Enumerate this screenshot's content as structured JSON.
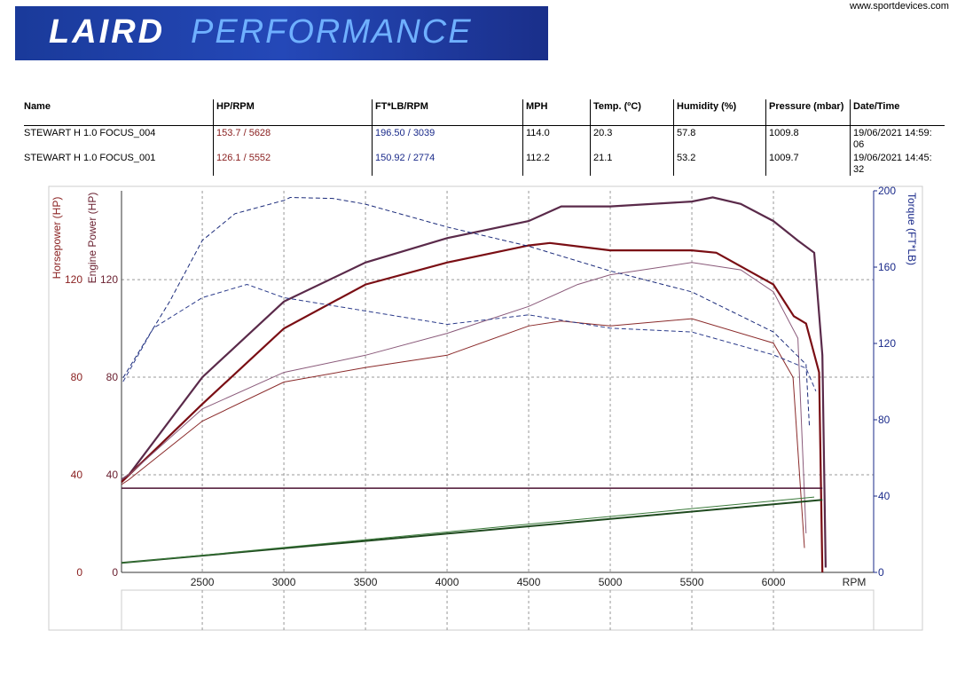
{
  "header": {
    "logo_bold": "LAIRD",
    "logo_light": "PERFORMANCE",
    "url": "www.sportdevices.com"
  },
  "table": {
    "columns": [
      "Name",
      "HP/RPM",
      "FT*LB/RPM",
      "MPH",
      "Temp. (ºC)",
      "Humidity (%)",
      "Pressure (mbar)",
      "Date/Time"
    ],
    "rows": [
      [
        "STEWART H 1.0 FOCUS_004",
        "153.7 / 5628",
        "196.50 / 3039",
        "114.0",
        "20.3",
        "57.8",
        "1009.8",
        "19/06/2021 14:59:06"
      ],
      [
        "STEWART H 1.0 FOCUS_001",
        "126.1 / 5552",
        "150.92 / 2774",
        "112.2",
        "21.1",
        "53.2",
        "1009.7",
        "19/06/2021 14:45:32"
      ]
    ]
  },
  "chart_data": {
    "type": "line",
    "ylabel": "Horsepower (HP)",
    "ylabel_inner": "Engine Power (HP)",
    "y2label": "Torque (FT*LB)",
    "xlabel": "RPM",
    "xlim": [
      2005,
      6614
    ],
    "ylim": [
      0,
      156.4
    ],
    "y2lim": [
      0,
      200
    ],
    "xticks": [
      2500,
      3000,
      3500,
      4000,
      4500,
      5000,
      5500,
      6000
    ],
    "yticks": [
      0,
      40,
      80,
      120
    ],
    "y2ticks": [
      0,
      40,
      80,
      120,
      160,
      200
    ],
    "grid": true,
    "series": [
      {
        "color": "#5a2a4a",
        "width": 2.2,
        "dash": "none",
        "axis": "y",
        "x": [
          2005,
          2050,
          2500,
          3000,
          3500,
          4000,
          4500,
          4700,
          5000,
          5500,
          5628,
          5800,
          6000,
          6150,
          6250,
          6300,
          6320
        ],
        "values": [
          38,
          40,
          80,
          111,
          127,
          137,
          144,
          150,
          150,
          152,
          153.7,
          151,
          144,
          136,
          131,
          89,
          2
        ]
      },
      {
        "color": "#7a0e14",
        "width": 2.2,
        "dash": "none",
        "axis": "y",
        "x": [
          2005,
          2500,
          3000,
          3500,
          4000,
          4500,
          4630,
          5000,
          5500,
          5650,
          6000,
          6125,
          6200,
          6280,
          6300
        ],
        "values": [
          37,
          69,
          100,
          118,
          127,
          134,
          135,
          132,
          132,
          131,
          118,
          105,
          102,
          82,
          0
        ]
      },
      {
        "color": "#8a5a7a",
        "width": 1,
        "dash": "none",
        "axis": "y",
        "x": [
          2005,
          2050,
          2500,
          3000,
          3500,
          4000,
          4500,
          4800,
          5000,
          5500,
          5800,
          6000,
          6150,
          6200
        ],
        "values": [
          38,
          40,
          67,
          82,
          89,
          98,
          109,
          118,
          122,
          127,
          124,
          115,
          96,
          16
        ]
      },
      {
        "color": "#8a2a2a",
        "width": 1,
        "dash": "none",
        "axis": "y",
        "x": [
          2005,
          2050,
          2500,
          3000,
          3500,
          4000,
          4500,
          4700,
          5000,
          5500,
          6000,
          6120,
          6190
        ],
        "values": [
          36,
          38,
          62,
          78,
          84,
          89,
          101,
          103,
          101,
          104,
          94,
          80,
          10
        ]
      },
      {
        "color": "#1a2a7a",
        "width": 1,
        "dash": "5 3",
        "axis": "y2",
        "x": [
          2015,
          2100,
          2300,
          2500,
          2700,
          3000,
          3039,
          3300,
          3500,
          4000,
          4500,
          5000,
          5500,
          6000,
          6200,
          6220
        ],
        "values": [
          102,
          114,
          142,
          174,
          188,
          195,
          196.5,
          196,
          193,
          181,
          171,
          158,
          147,
          126,
          109,
          77
        ]
      },
      {
        "color": "#2a3a8a",
        "width": 1,
        "dash": "5 3",
        "axis": "y2",
        "x": [
          2015,
          2200,
          2500,
          2774,
          3000,
          3500,
          4000,
          4500,
          5000,
          5500,
          6000,
          6200,
          6260
        ],
        "values": [
          100,
          128,
          144,
          150.92,
          144,
          137,
          130,
          135,
          128,
          126,
          114,
          107,
          95
        ]
      },
      {
        "color": "#4a1030",
        "width": 1.5,
        "dash": "none",
        "axis": "y",
        "x": [
          2005,
          6300
        ],
        "values": [
          34.5,
          34.5
        ]
      },
      {
        "color": "#1f4a1f",
        "width": 2,
        "dash": "none",
        "axis": "y2",
        "x": [
          2005,
          6300
        ],
        "values": [
          5,
          38
        ]
      },
      {
        "color": "#3a7a3a",
        "width": 1,
        "dash": "none",
        "axis": "y2",
        "x": [
          2005,
          6250
        ],
        "values": [
          5,
          39.5
        ]
      }
    ]
  }
}
